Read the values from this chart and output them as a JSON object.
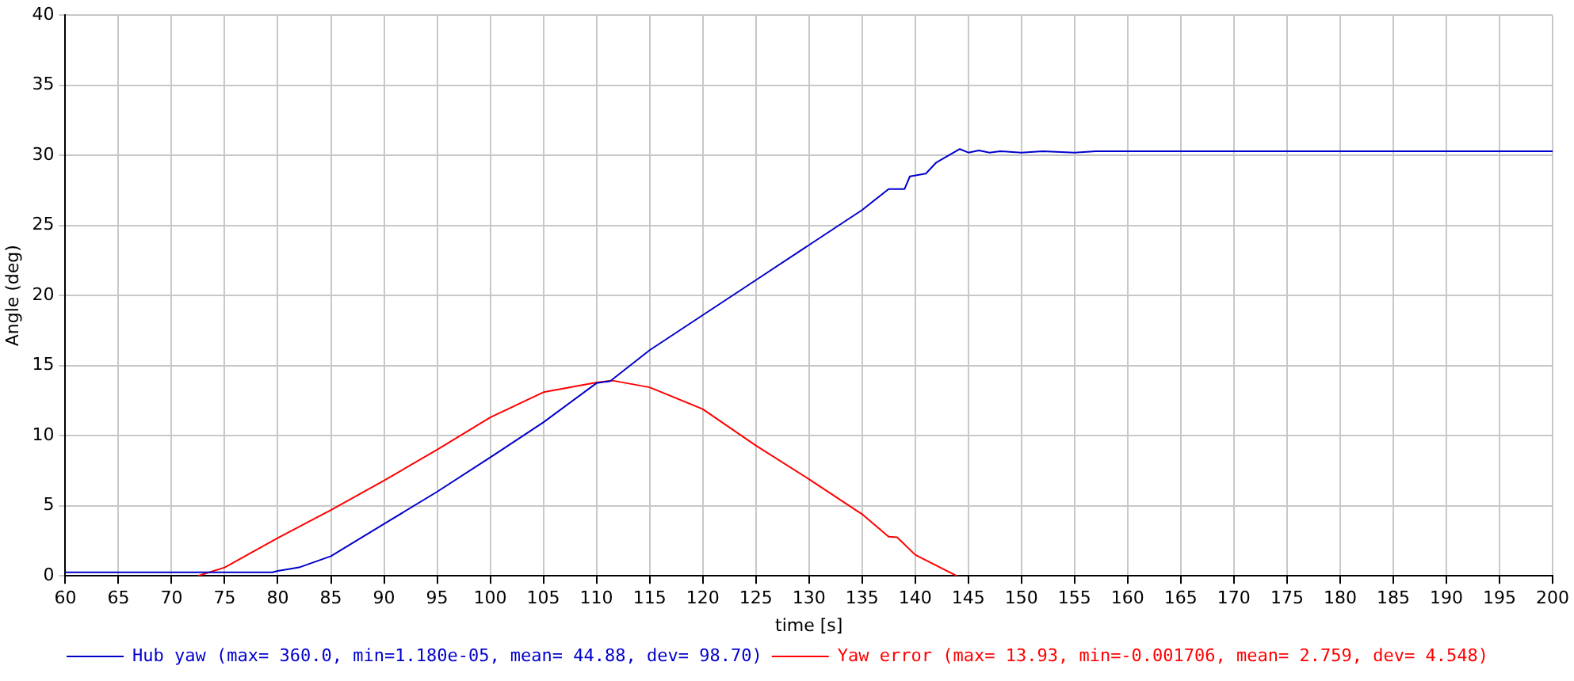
{
  "chart_data": {
    "type": "line",
    "xlabel": "time [s]",
    "ylabel": "Angle (deg)",
    "xlim": [
      60,
      200
    ],
    "xticks": [
      60,
      65,
      70,
      75,
      80,
      85,
      90,
      95,
      100,
      105,
      110,
      115,
      120,
      125,
      130,
      135,
      140,
      145,
      150,
      155,
      160,
      165,
      170,
      175,
      180,
      185,
      190,
      195,
      200
    ],
    "ylim": [
      0,
      40
    ],
    "yticks": [
      0,
      5,
      10,
      15,
      20,
      25,
      30,
      35,
      40
    ],
    "grid": true,
    "legend": "bottom",
    "marker": "none",
    "line_style": "solid",
    "series": [
      {
        "name": "Hub yaw (max= 360.0, min=1.180e-05, mean= 44.88, dev= 98.70)",
        "color": "#0000cc",
        "x": [
          60,
          70,
          79.5,
          80,
          82,
          85,
          90,
          95,
          100,
          105,
          110,
          111.3,
          115,
          120,
          125,
          130,
          135,
          137.5,
          139,
          139.5,
          141,
          142,
          144.2,
          145,
          146,
          147,
          148,
          150,
          152,
          155,
          157,
          160,
          200
        ],
        "values": [
          0.25,
          0.25,
          0.25,
          0.35,
          0.6,
          1.4,
          3.7,
          6.0,
          8.45,
          10.95,
          13.75,
          13.9,
          16.1,
          18.6,
          21.1,
          23.6,
          26.1,
          27.6,
          27.6,
          28.5,
          28.7,
          29.5,
          30.45,
          30.2,
          30.35,
          30.2,
          30.3,
          30.2,
          30.3,
          30.2,
          30.3,
          30.3,
          30.3
        ]
      },
      {
        "name": "Yaw error (max= 13.93, min=-0.001706, mean= 2.759, dev= 4.548)",
        "color": "#ff0000",
        "x": [
          72.5,
          75,
          80,
          85,
          90,
          95,
          100,
          105,
          110,
          111.5,
          115,
          120,
          125,
          130,
          135,
          137.5,
          138.3,
          140,
          143.9
        ],
        "values": [
          0,
          0.6,
          2.7,
          4.7,
          6.8,
          9.0,
          11.3,
          13.1,
          13.8,
          13.93,
          13.45,
          11.9,
          9.3,
          6.9,
          4.4,
          2.8,
          2.75,
          1.5,
          0
        ]
      }
    ]
  }
}
